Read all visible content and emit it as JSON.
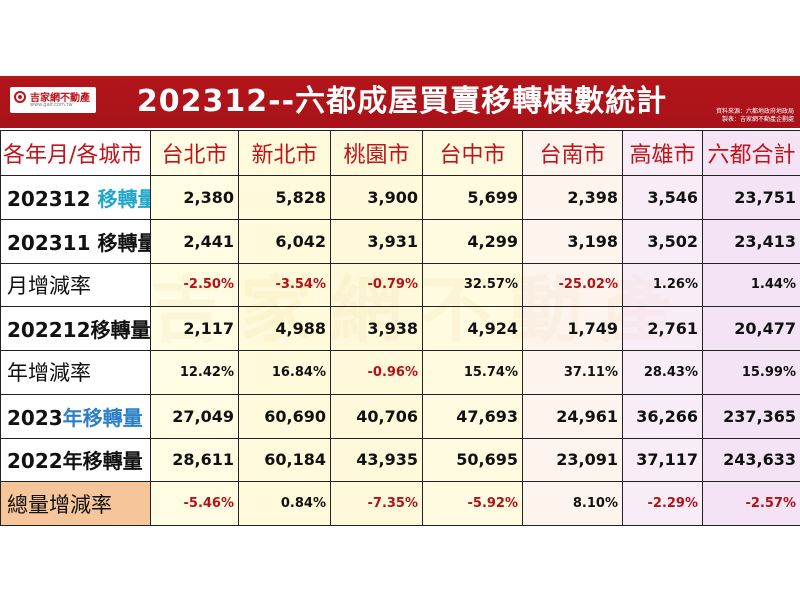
{
  "header": {
    "title": "202312--六都成屋買賣移轉棟數統計",
    "logo_text": "吉家網不動產",
    "logo_sub": "www.gair.com.tw",
    "source_line1": "資料來源：六都地政府地政局",
    "source_line2": "製表：吉家網不動產企劃處",
    "accent_color": "#b3151b"
  },
  "watermark": "吉家網不動產",
  "table": {
    "columns": [
      "各年月/各城市",
      "台北市",
      "新北市",
      "桃園市",
      "台中市",
      "台南市",
      "高雄市",
      "六都合計"
    ],
    "rows": [
      {
        "label_a": "202312 ",
        "label_b": "移轉量",
        "values": [
          "2,380",
          "5,828",
          "3,900",
          "5,699",
          "2,398",
          "3,546",
          "23,751"
        ]
      },
      {
        "label_a": "202311 移轉量",
        "label_b": "",
        "values": [
          "2,441",
          "6,042",
          "3,931",
          "4,299",
          "3,198",
          "3,502",
          "23,413"
        ]
      },
      {
        "label_a": "月增減率",
        "label_b": "",
        "values": [
          "-2.50%",
          "-3.54%",
          "-0.79%",
          "32.57%",
          "-25.02%",
          "1.26%",
          "1.44%"
        ]
      },
      {
        "label_a": "202212移轉量",
        "label_b": "",
        "values": [
          "2,117",
          "4,988",
          "3,938",
          "4,924",
          "1,749",
          "2,761",
          "20,477"
        ]
      },
      {
        "label_a": "年增減率",
        "label_b": "",
        "values": [
          "12.42%",
          "16.84%",
          "-0.96%",
          "15.74%",
          "37.11%",
          "28.43%",
          "15.99%"
        ]
      },
      {
        "label_a": "2023",
        "label_b": "年移轉量",
        "values": [
          "27,049",
          "60,690",
          "40,706",
          "47,693",
          "24,961",
          "36,266",
          "237,365"
        ]
      },
      {
        "label_a": "2022年移轉量",
        "label_b": "",
        "values": [
          "28,611",
          "60,184",
          "43,935",
          "50,695",
          "23,091",
          "37,117",
          "243,633"
        ]
      },
      {
        "label_a": "總量增減率",
        "label_b": "",
        "values": [
          "-5.46%",
          "0.84%",
          "-7.35%",
          "-5.92%",
          "8.10%",
          "-2.29%",
          "-2.57%"
        ]
      }
    ]
  },
  "colors": {
    "header_text": "#c0141b",
    "negative": "#b31218",
    "highlight_cyan": "#21a6c9",
    "highlight_blue": "#2a7fc6",
    "total_label_bg": "#f6c69a"
  }
}
